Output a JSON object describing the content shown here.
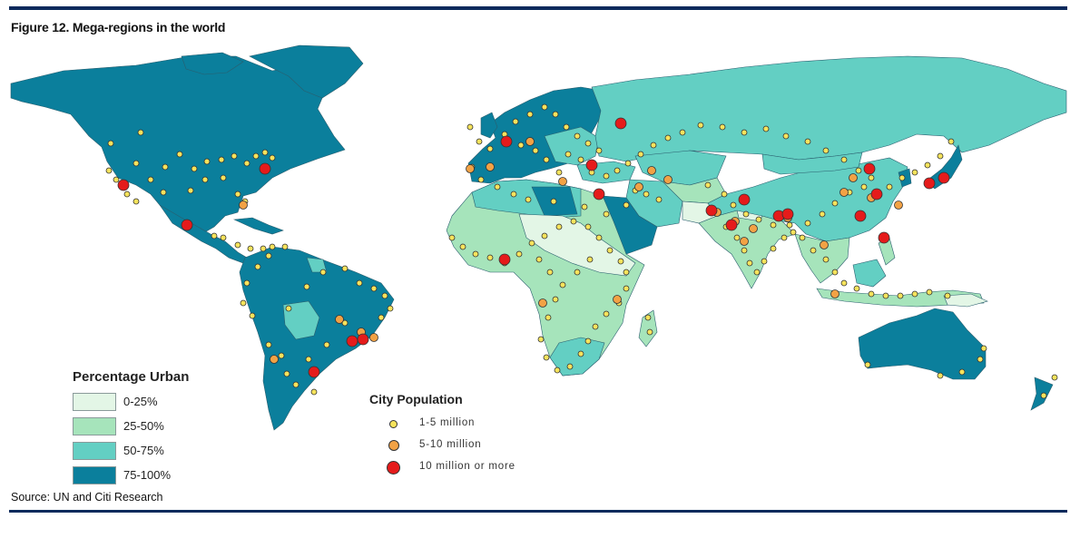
{
  "figure": {
    "title": "Figure 12. Mega-regions in the world",
    "source": "Source: UN and Citi Research"
  },
  "colors": {
    "urban_0_25": "#e3f6e6",
    "urban_25_50": "#a6e4bb",
    "urban_50_75": "#63cfc3",
    "urban_75_100": "#0b7f9c",
    "city_small": "#f6e35c",
    "city_medium": "#f2a245",
    "city_large": "#e51b1b",
    "rule": "#0b2a5c"
  },
  "legend_urban": {
    "title": "Percentage Urban",
    "items": [
      {
        "label": "0-25%",
        "color": "#e3f6e6"
      },
      {
        "label": "25-50%",
        "color": "#a6e4bb"
      },
      {
        "label": "50-75%",
        "color": "#63cfc3"
      },
      {
        "label": "75-100%",
        "color": "#0b7f9c"
      }
    ]
  },
  "legend_city": {
    "title": "City Population",
    "items": [
      {
        "label": "1-5 million",
        "color": "#f6e35c",
        "size": "small"
      },
      {
        "label": "5-10 million",
        "color": "#f2a245",
        "size": "medium"
      },
      {
        "label": "10 million or more",
        "color": "#e51b1b",
        "size": "large"
      }
    ]
  }
}
